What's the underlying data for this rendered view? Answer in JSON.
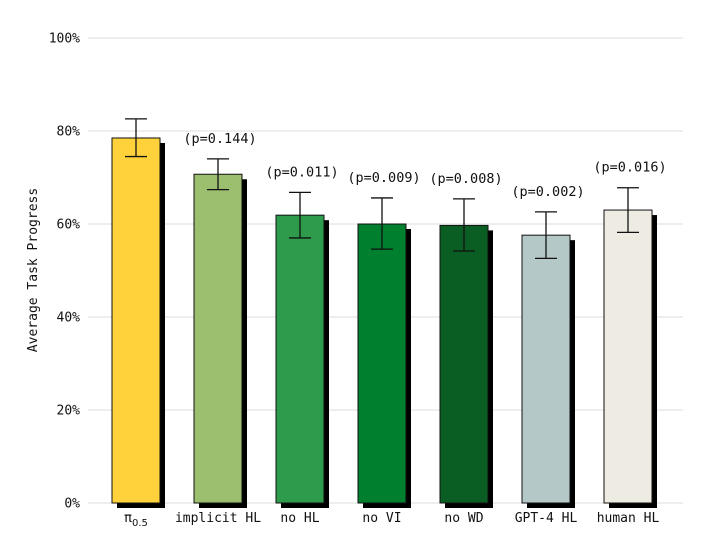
{
  "chart_data": {
    "type": "bar",
    "ylabel": "Average Task Progress",
    "xlabel": "",
    "ylim": [
      0,
      100
    ],
    "yticks": [
      0,
      20,
      40,
      60,
      80,
      100
    ],
    "ytick_labels": [
      "0%",
      "20%",
      "40%",
      "60%",
      "80%",
      "100%"
    ],
    "grid": "horizontal",
    "categories": [
      {
        "label": "π",
        "sub": "0.5"
      },
      {
        "label": "implicit HL",
        "sub": ""
      },
      {
        "label": "no HL",
        "sub": ""
      },
      {
        "label": "no VI",
        "sub": ""
      },
      {
        "label": "no WD",
        "sub": ""
      },
      {
        "label": "GPT-4 HL",
        "sub": ""
      },
      {
        "label": "human HL",
        "sub": ""
      }
    ],
    "values": [
      78.5,
      70.7,
      61.9,
      60.0,
      59.7,
      57.6,
      63.0
    ],
    "err_low": [
      74.5,
      67.4,
      57.0,
      54.6,
      54.2,
      52.6,
      58.2
    ],
    "err_high": [
      82.6,
      74.0,
      66.8,
      65.6,
      65.4,
      62.6,
      67.8
    ],
    "annotations": [
      "",
      "(p=0.144)",
      "(p=0.011)",
      "(p=0.009)",
      "(p=0.008)",
      "(p=0.002)",
      "(p=0.016)"
    ],
    "colors": [
      "#ffd23c",
      "#9bbf6f",
      "#2e9a4b",
      "#00802e",
      "#0a5e24",
      "#b5c8c8",
      "#eeebe3"
    ]
  }
}
